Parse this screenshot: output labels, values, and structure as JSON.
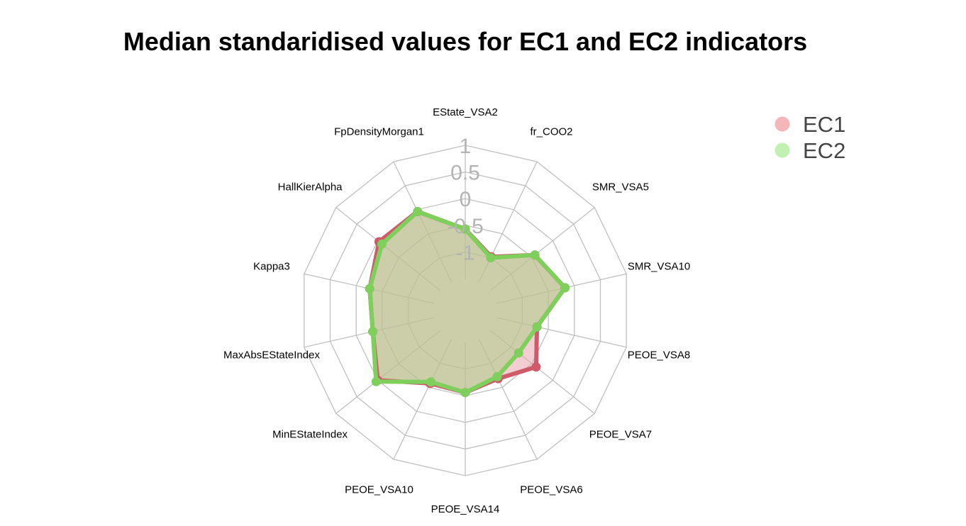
{
  "chart_data": {
    "type": "radar",
    "title": "Median standaridised values for EC1 and EC2 indicators",
    "axes": [
      "EState_VSA2",
      "fr_COO2",
      "SMR_VSA5",
      "SMR_VSA10",
      "PEOE_VSA8",
      "PEOE_VSA7",
      "PEOE_VSA6",
      "PEOE_VSA14",
      "PEOE_VSA10",
      "MinEStateIndex",
      "MaxAbsEStateIndex",
      "Kappa3",
      "HallKierAlpha",
      "FpDensityMorgan1"
    ],
    "range": [
      -1.5,
      1
    ],
    "ring_values": [
      -1,
      -0.5,
      0,
      0.5,
      1
    ],
    "ring_labels": [
      "-1",
      "-0.5",
      "0",
      "0.5",
      "1"
    ],
    "grid": true,
    "legend_position": "top-right",
    "series": [
      {
        "name": "EC1",
        "color": "#cf5a6a",
        "legend_color": "#f4b6b8",
        "fill_color": "#e8a4ac",
        "values": [
          -0.57,
          -0.98,
          -0.43,
          -0.18,
          -0.72,
          -0.4,
          -0.68,
          -0.56,
          -0.58,
          0.0,
          -0.32,
          -0.26,
          -0.03,
          -0.04
        ]
      },
      {
        "name": "EC2",
        "color": "#7fcf5c",
        "legend_color": "#c2efb2",
        "fill_color": "#a5d083",
        "values": [
          -0.57,
          -1.0,
          -0.43,
          -0.18,
          -0.72,
          -0.82,
          -0.72,
          -0.56,
          -0.61,
          0.04,
          -0.32,
          -0.26,
          -0.1,
          -0.04
        ]
      }
    ]
  }
}
